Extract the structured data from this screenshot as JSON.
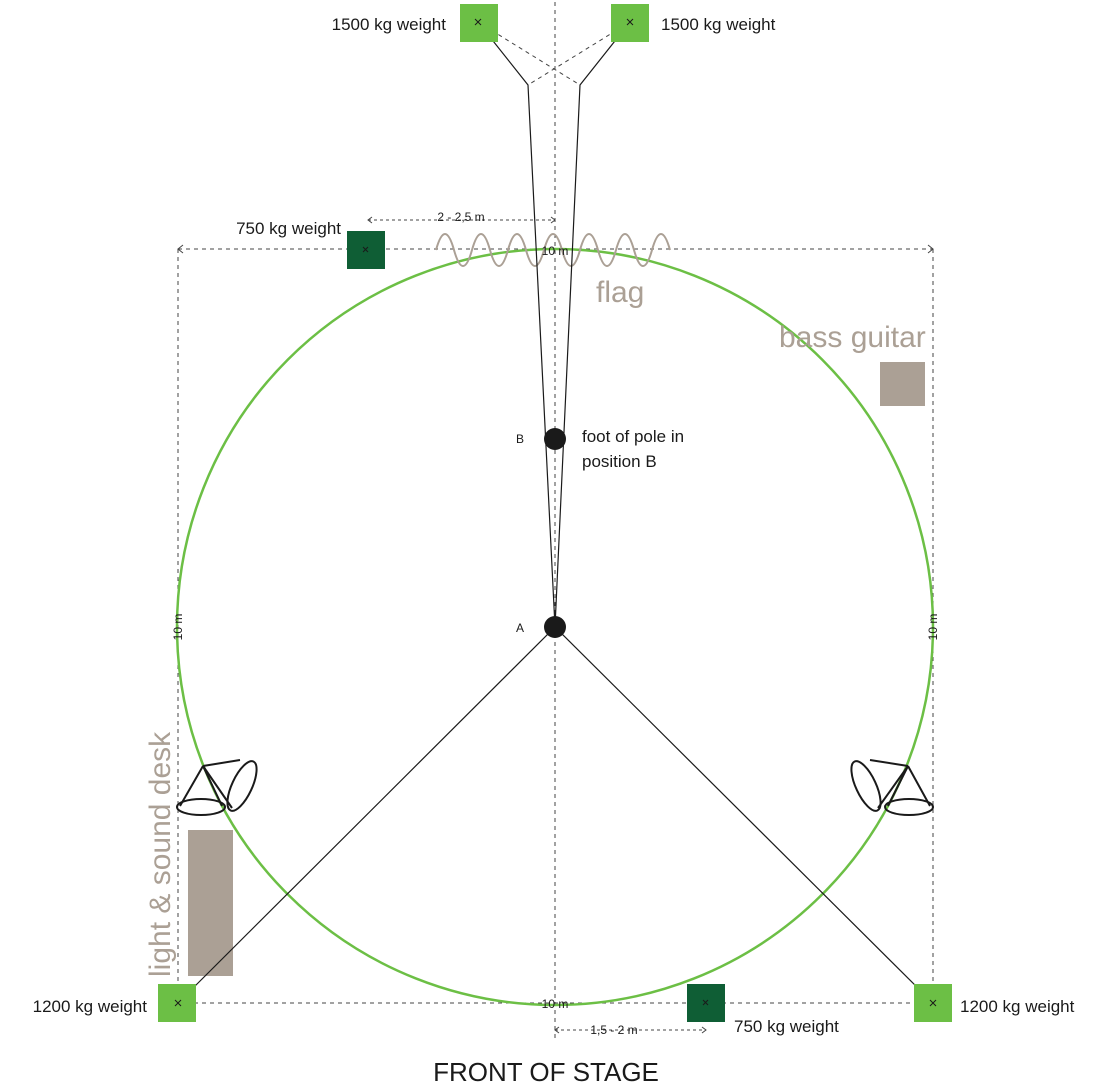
{
  "labels": {
    "weight_top_left": "1500 kg weight",
    "weight_top_right": "1500 kg weight",
    "weight_mid_top": "750 kg weight",
    "weight_bottom_left": "1200 kg weight",
    "weight_bottom_right": "1200 kg weight",
    "weight_mid_bottom": "750 kg weight",
    "dist_top": "2 - 2,5 m",
    "dist_bottom": "1,5 - 2 m",
    "dim_top": "10 m",
    "dim_bottom": "10 m",
    "dim_left": "10 m",
    "dim_right": "10 m",
    "flag": "flag",
    "bass_guitar": "bass guitar",
    "light_sound_desk": "light & sound desk",
    "point_a": "A",
    "point_b": "B",
    "pole_note_line1": "foot of pole in",
    "pole_note_line2": "position B",
    "front_of_stage": "FRONT OF STAGE"
  },
  "colors": {
    "light_weight": "#6cbf45",
    "dark_weight": "#0f5e35",
    "circle": "#6cbf45",
    "equipment": "#aba095",
    "gray_text": "#aba095"
  }
}
